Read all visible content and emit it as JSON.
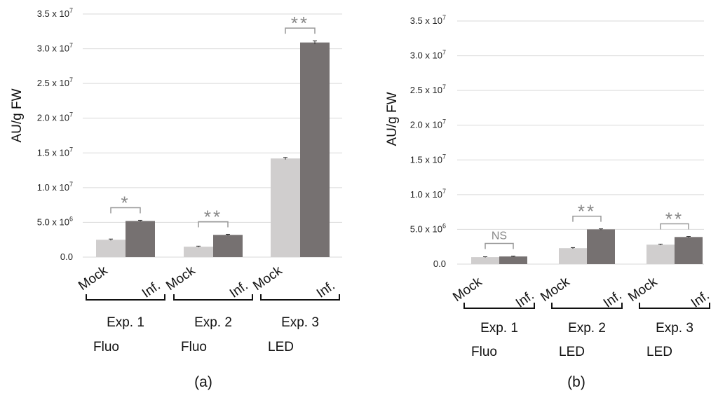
{
  "chart_data": [
    {
      "type": "bar",
      "panel_label": "(a)",
      "ylabel": "AU/g FW",
      "ylim": [
        0,
        35000000
      ],
      "yticks": [
        {
          "base": "0.0",
          "exp": ""
        },
        {
          "base": "5.0 x 10",
          "exp": "6"
        },
        {
          "base": "1.0 x 10",
          "exp": "7"
        },
        {
          "base": "1.5 x 10",
          "exp": "7"
        },
        {
          "base": "2.0 x 10",
          "exp": "7"
        },
        {
          "base": "2.5 x 10",
          "exp": "7"
        },
        {
          "base": "3.0 x 10",
          "exp": "7"
        },
        {
          "base": "3.5 x 10",
          "exp": "7"
        }
      ],
      "grid": true,
      "colors": {
        "Mock": "#d0cece",
        "Inf.": "#767171"
      },
      "groups": [
        {
          "line1": "Exp. 1",
          "line2": "Fluo",
          "significance": "*",
          "bars": [
            {
              "label": "Mock",
              "value": 2500000,
              "error": 100000
            },
            {
              "label": "Inf.",
              "value": 5200000,
              "error": 100000
            }
          ]
        },
        {
          "line1": "Exp. 2",
          "line2": "Fluo",
          "significance": "**",
          "bars": [
            {
              "label": "Mock",
              "value": 1500000,
              "error": 80000
            },
            {
              "label": "Inf.",
              "value": 3200000,
              "error": 80000
            }
          ]
        },
        {
          "line1": "Exp. 3",
          "line2": "LED",
          "significance": "**",
          "bars": [
            {
              "label": "Mock",
              "value": 14200000,
              "error": 150000
            },
            {
              "label": "Inf.",
              "value": 30900000,
              "error": 250000
            }
          ]
        }
      ]
    },
    {
      "type": "bar",
      "panel_label": "(b)",
      "ylabel": "AU/g FW",
      "ylim": [
        0,
        35000000
      ],
      "yticks": [
        {
          "base": "0.0",
          "exp": ""
        },
        {
          "base": "5.0 x 10",
          "exp": "6"
        },
        {
          "base": "1.0 x 10",
          "exp": "7"
        },
        {
          "base": "1.5 x 10",
          "exp": "7"
        },
        {
          "base": "2.0 x 10",
          "exp": "7"
        },
        {
          "base": "2.5 x 10",
          "exp": "7"
        },
        {
          "base": "3.0 x 10",
          "exp": "7"
        },
        {
          "base": "3.5 x 10",
          "exp": "7"
        }
      ],
      "grid": true,
      "colors": {
        "Mock": "#d0cece",
        "Inf.": "#767171"
      },
      "groups": [
        {
          "line1": "Exp. 1",
          "line2": "Fluo",
          "significance": "NS",
          "bars": [
            {
              "label": "Mock",
              "value": 1000000,
              "error": 60000
            },
            {
              "label": "Inf.",
              "value": 1100000,
              "error": 60000
            }
          ]
        },
        {
          "line1": "Exp. 2",
          "line2": "LED",
          "significance": "**",
          "bars": [
            {
              "label": "Mock",
              "value": 2300000,
              "error": 80000
            },
            {
              "label": "Inf.",
              "value": 5000000,
              "error": 80000
            }
          ]
        },
        {
          "line1": "Exp. 3",
          "line2": "LED",
          "significance": "**",
          "bars": [
            {
              "label": "Mock",
              "value": 2800000,
              "error": 80000
            },
            {
              "label": "Inf.",
              "value": 3900000,
              "error": 80000
            }
          ]
        }
      ]
    }
  ]
}
